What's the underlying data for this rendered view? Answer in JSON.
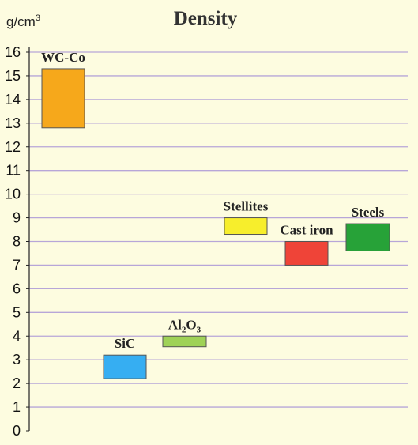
{
  "chart_data": {
    "type": "bar",
    "title": "Density",
    "ylabel": "g/cm",
    "ylabel_sup": "3",
    "ylim": [
      0,
      16
    ],
    "yticks": [
      0,
      1,
      2,
      3,
      4,
      5,
      6,
      7,
      8,
      9,
      10,
      11,
      12,
      13,
      14,
      15,
      16
    ],
    "grid": true,
    "series": [
      {
        "name": "WC-Co",
        "low": 12.8,
        "high": 15.3,
        "color": "#f6a81b"
      },
      {
        "name": "SiC",
        "low": 2.2,
        "high": 3.2,
        "color": "#36aef2"
      },
      {
        "name": "Al2O3",
        "label_parts": [
          "Al",
          "2",
          "O",
          "3"
        ],
        "low": 3.55,
        "high": 4.0,
        "color": "#9fd257"
      },
      {
        "name": "Stellites",
        "low": 8.3,
        "high": 9.0,
        "color": "#f7ee2c"
      },
      {
        "name": "Cast iron",
        "low": 7.0,
        "high": 8.0,
        "color": "#ef4438"
      },
      {
        "name": "Steels",
        "low": 7.6,
        "high": 8.75,
        "color": "#27a238"
      }
    ]
  }
}
